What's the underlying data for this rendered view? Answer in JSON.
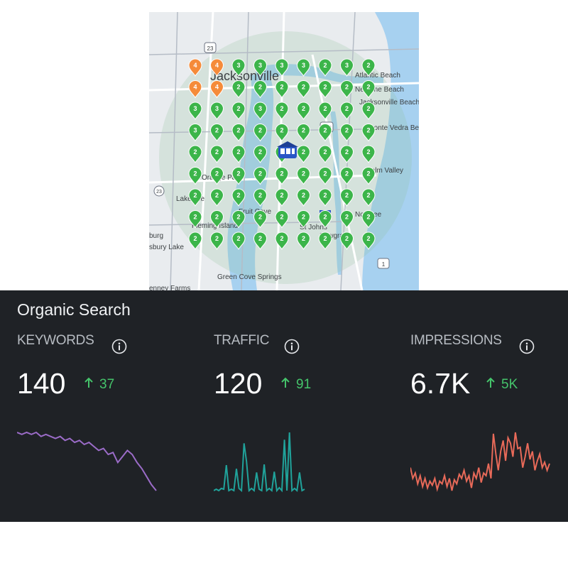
{
  "map": {
    "labels": {
      "jacksonville": "Jacksonville",
      "atlantic_beach": "Atlantic Beach",
      "neptune_beach": "Neptune Beach",
      "jacksonville_beach": "Jacksonville Beach",
      "ponte_vedra_beach": "Ponte Vedra Beach",
      "palm_valley": "Palm Valley",
      "orange_park": "Orange Park",
      "fruit_cove": "Fruit Cove",
      "lakeside": "Lakeside",
      "fleming_island": "Fleming Island",
      "nocatee": "Nocatee",
      "st_johns": "St Johns",
      "sawgrass": "Sawgrass",
      "middleburg": "burg",
      "kingsley_lake": "sbury Lake",
      "green_cove_springs": "Green Cove Springs",
      "penney_farms": "enney Farms"
    },
    "route_shields": [
      "23",
      "202",
      "1",
      "23",
      "95"
    ],
    "rank_grid": [
      [
        4,
        4,
        3,
        3,
        3,
        3,
        2,
        3,
        2
      ],
      [
        4,
        4,
        2,
        2,
        2,
        2,
        2,
        2,
        2
      ],
      [
        3,
        3,
        2,
        3,
        2,
        2,
        2,
        2,
        2
      ],
      [
        3,
        2,
        2,
        2,
        2,
        2,
        2,
        2,
        2
      ],
      [
        2,
        2,
        2,
        2,
        2,
        2,
        2,
        2,
        2
      ],
      [
        2,
        2,
        2,
        2,
        2,
        2,
        2,
        2,
        2
      ],
      [
        2,
        2,
        2,
        2,
        2,
        2,
        2,
        2,
        2
      ],
      [
        2,
        2,
        2,
        2,
        2,
        2,
        2,
        2,
        2
      ],
      [
        2,
        2,
        2,
        2,
        2,
        2,
        2,
        2,
        2
      ]
    ],
    "colors": {
      "good": "#3cb54a",
      "medium": "#f58b3a",
      "business": "#2a56c6"
    }
  },
  "panel": {
    "title": "Organic Search",
    "metrics": [
      {
        "label": "KEYWORDS",
        "value": "140",
        "delta": "37",
        "icon": "info-icon",
        "color": "#9b6cc8",
        "series": [
          55,
          54,
          55,
          54,
          55,
          53,
          54,
          53,
          52,
          53,
          51,
          52,
          50,
          51,
          49,
          50,
          48,
          46,
          47,
          44,
          45,
          40,
          43,
          46,
          44,
          40,
          37,
          33,
          29,
          26
        ]
      },
      {
        "label": "TRAFFIC",
        "value": "120",
        "delta": "91",
        "icon": "info-icon",
        "color": "#20a39b",
        "series": [
          0,
          2,
          0,
          3,
          2,
          35,
          0,
          2,
          0,
          30,
          3,
          0,
          65,
          40,
          0,
          3,
          0,
          25,
          2,
          0,
          36,
          0,
          3,
          0,
          26,
          0,
          4,
          0,
          70,
          0,
          80,
          0,
          3,
          0,
          25,
          0,
          2
        ]
      },
      {
        "label": "IMPRESSIONS",
        "value": "6.7K",
        "delta": "5K",
        "icon": "info-icon",
        "color": "#e86a59",
        "series": [
          30,
          22,
          26,
          18,
          24,
          16,
          22,
          15,
          20,
          17,
          22,
          14,
          20,
          18,
          24,
          16,
          22,
          13,
          21,
          18,
          25,
          22,
          28,
          20,
          24,
          15,
          26,
          22,
          30,
          19,
          26,
          24,
          33,
          22,
          55,
          40,
          28,
          42,
          50,
          35,
          52,
          48,
          38,
          56,
          44,
          45,
          30,
          38,
          48,
          36,
          42,
          28,
          35,
          40,
          30,
          34,
          28,
          33
        ]
      }
    ],
    "colors": {
      "background": "#1f2226",
      "up": "#45c46b"
    }
  }
}
